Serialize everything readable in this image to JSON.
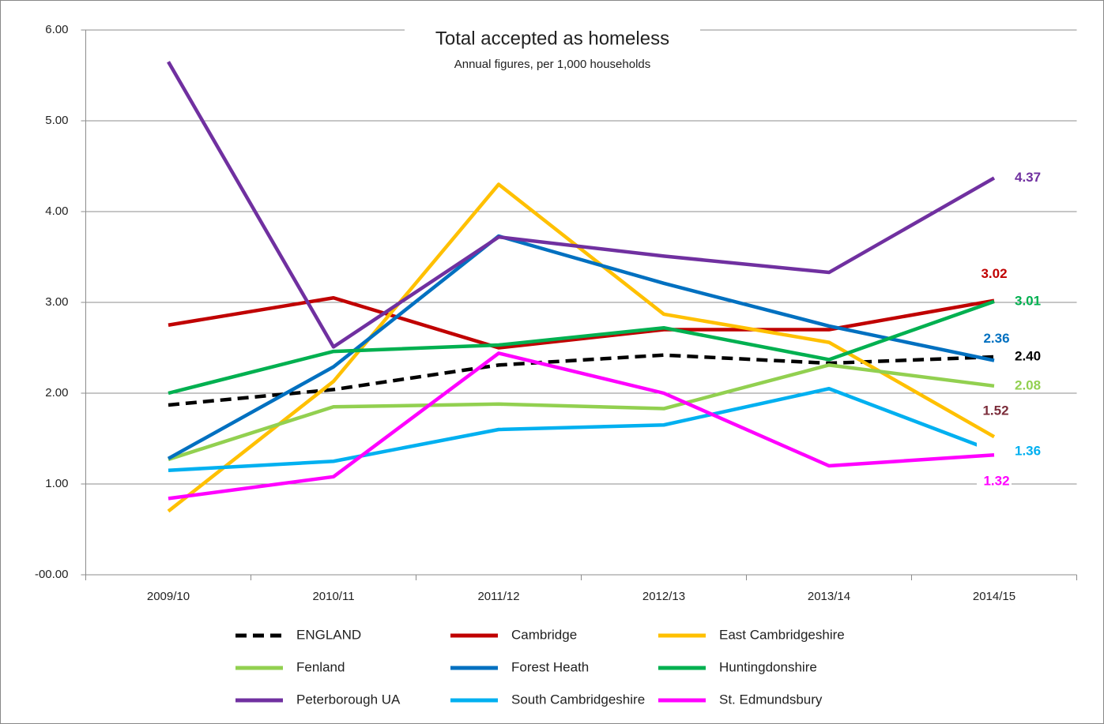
{
  "chart_data": {
    "type": "line",
    "title": "Total accepted as homeless",
    "subtitle": "Annual figures, per 1,000 households",
    "categories": [
      "2009/10",
      "2010/11",
      "2011/12",
      "2012/13",
      "2013/14",
      "2014/15"
    ],
    "ylim": [
      0,
      6
    ],
    "yticks": [
      {
        "value": 0,
        "label": "-00.00"
      },
      {
        "value": 1,
        "label": "1.00"
      },
      {
        "value": 2,
        "label": "2.00"
      },
      {
        "value": 3,
        "label": "3.00"
      },
      {
        "value": 4,
        "label": "4.00"
      },
      {
        "value": 5,
        "label": "5.00"
      },
      {
        "value": 6,
        "label": "6.00"
      }
    ],
    "grid": true,
    "legend": "bottom",
    "series": [
      {
        "name": "ENGLAND",
        "color": "#000000",
        "dash": true,
        "label_color": "#000000",
        "values": [
          1.87,
          2.04,
          2.31,
          2.42,
          2.33,
          2.4
        ],
        "value_labels": [
          null,
          null,
          null,
          null,
          null,
          "2.40"
        ]
      },
      {
        "name": "Cambridge",
        "color": "#c00000",
        "label_color": "#c00000",
        "values": [
          2.75,
          3.05,
          2.5,
          2.7,
          2.7,
          3.02
        ],
        "value_labels": [
          null,
          null,
          null,
          null,
          null,
          "3.02"
        ]
      },
      {
        "name": "East Cambridgeshire",
        "color": "#ffc000",
        "label_color": "#7b2c3a",
        "values": [
          0.7,
          2.13,
          4.3,
          2.87,
          2.56,
          1.52
        ],
        "value_labels": [
          null,
          null,
          null,
          null,
          null,
          "1.52"
        ]
      },
      {
        "name": "Fenland",
        "color": "#92d050",
        "label_color": "#92d050",
        "values": [
          1.27,
          1.85,
          1.88,
          1.83,
          2.31,
          2.08
        ],
        "value_labels": [
          null,
          null,
          null,
          null,
          null,
          "2.08"
        ]
      },
      {
        "name": "Forest Heath",
        "color": "#0070c0",
        "label_color": "#0070c0",
        "values": [
          1.28,
          2.29,
          3.73,
          3.21,
          2.74,
          2.36
        ],
        "value_labels": [
          null,
          null,
          null,
          null,
          null,
          "2.36"
        ]
      },
      {
        "name": "Huntingdonshire",
        "color": "#00b050",
        "label_color": "#00b050",
        "values": [
          2.0,
          2.46,
          2.53,
          2.72,
          2.37,
          3.01
        ],
        "value_labels": [
          null,
          null,
          null,
          null,
          null,
          "3.01"
        ]
      },
      {
        "name": "Peterborough UA",
        "color": "#7030a0",
        "label_color": "#7030a0",
        "values": [
          5.65,
          2.51,
          3.72,
          3.51,
          3.33,
          4.37
        ],
        "value_labels": [
          null,
          null,
          null,
          null,
          null,
          "4.37"
        ]
      },
      {
        "name": "South Cambridgeshire",
        "color": "#00b0f0",
        "label_color": "#00b0f0",
        "values": [
          1.15,
          1.25,
          1.6,
          1.65,
          2.05,
          1.36
        ],
        "value_labels": [
          null,
          null,
          null,
          null,
          null,
          "1.36"
        ]
      },
      {
        "name": "St. Edmundsbury",
        "color": "#ff00ff",
        "label_color": "#ff00ff",
        "values": [
          0.84,
          1.08,
          2.44,
          2.0,
          1.2,
          1.32
        ],
        "value_labels": [
          null,
          null,
          null,
          null,
          null,
          "1.32"
        ]
      }
    ]
  }
}
